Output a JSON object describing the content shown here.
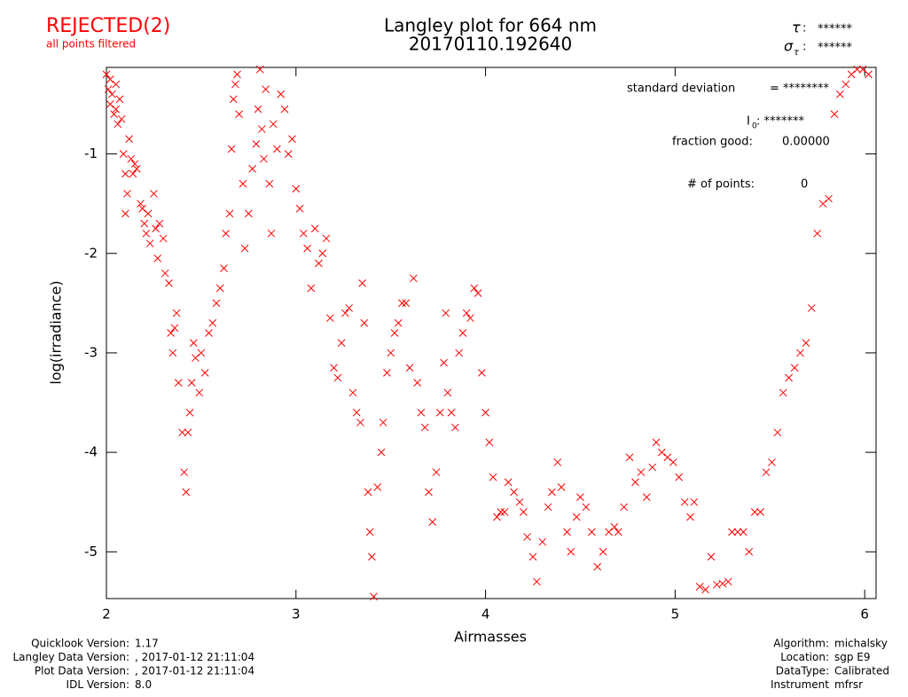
{
  "chart_data": {
    "type": "scatter",
    "title": "Langley plot for 664 nm",
    "subtitle": "20170110.192640",
    "status": "REJECTED(2)",
    "status_note": "all points filtered",
    "tau": {
      "symbol": "τ",
      "value": "******"
    },
    "sigma_tau": {
      "symbol": "σ",
      "sub": "τ",
      "value": "******"
    },
    "annotations": {
      "std_label": "standard deviation",
      "std_value": "= ********",
      "i0_label": "I",
      "i0_sub": "0",
      "i0_value": ": *******",
      "fraction_label": "fraction good:",
      "fraction_value": "0.00000",
      "points_label": "# of points:",
      "points_value": "0"
    },
    "x_label": "Airmasses",
    "y_label": "log(irradiance)",
    "color": "#ff0000",
    "xlim": [
      2,
      6.06
    ],
    "ylim": [
      -5.47,
      -0.13
    ],
    "xticks": [
      2,
      3,
      4,
      5,
      6
    ],
    "yticks": [
      -1,
      -2,
      -3,
      -4,
      -5
    ],
    "x": [
      2.0,
      2.01,
      2.02,
      2.02,
      2.03,
      2.04,
      2.05,
      2.05,
      2.06,
      2.07,
      2.08,
      2.09,
      2.1,
      2.1,
      2.11,
      2.12,
      2.13,
      2.14,
      2.15,
      2.16,
      2.18,
      2.19,
      2.2,
      2.21,
      2.22,
      2.23,
      2.25,
      2.26,
      2.27,
      2.28,
      2.3,
      2.31,
      2.33,
      2.34,
      2.35,
      2.36,
      2.37,
      2.38,
      2.4,
      2.41,
      2.42,
      2.43,
      2.44,
      2.45,
      2.46,
      2.47,
      2.49,
      2.5,
      2.52,
      2.54,
      2.56,
      2.58,
      2.6,
      2.62,
      2.63,
      2.65,
      2.66,
      2.67,
      2.68,
      2.69,
      2.7,
      2.72,
      2.73,
      2.75,
      2.77,
      2.79,
      2.8,
      2.81,
      2.82,
      2.83,
      2.84,
      2.86,
      2.87,
      2.88,
      2.9,
      2.92,
      2.94,
      2.96,
      2.98,
      3.0,
      3.02,
      3.04,
      3.06,
      3.08,
      3.1,
      3.12,
      3.14,
      3.16,
      3.18,
      3.2,
      3.22,
      3.24,
      3.26,
      3.28,
      3.3,
      3.32,
      3.34,
      3.35,
      3.36,
      3.38,
      3.39,
      3.4,
      3.41,
      3.43,
      3.45,
      3.46,
      3.48,
      3.5,
      3.52,
      3.54,
      3.56,
      3.58,
      3.6,
      3.62,
      3.64,
      3.66,
      3.68,
      3.7,
      3.72,
      3.74,
      3.76,
      3.78,
      3.79,
      3.8,
      3.82,
      3.84,
      3.86,
      3.88,
      3.9,
      3.92,
      3.94,
      3.96,
      3.98,
      4.0,
      4.02,
      4.04,
      4.06,
      4.08,
      4.1,
      4.12,
      4.15,
      4.18,
      4.2,
      4.22,
      4.25,
      4.27,
      4.3,
      4.33,
      4.35,
      4.38,
      4.4,
      4.43,
      4.45,
      4.48,
      4.5,
      4.53,
      4.56,
      4.59,
      4.62,
      4.65,
      4.68,
      4.7,
      4.73,
      4.76,
      4.79,
      4.82,
      4.85,
      4.88,
      4.9,
      4.93,
      4.96,
      4.99,
      5.02,
      5.05,
      5.08,
      5.1,
      5.13,
      5.16,
      5.19,
      5.22,
      5.25,
      5.28,
      5.3,
      5.33,
      5.36,
      5.39,
      5.42,
      5.45,
      5.48,
      5.51,
      5.54,
      5.57,
      5.6,
      5.63,
      5.66,
      5.69,
      5.72,
      5.75,
      5.78,
      5.81,
      5.84,
      5.87,
      5.9,
      5.93,
      5.96,
      5.99,
      6.02
    ],
    "values": [
      -0.2,
      -0.35,
      -0.5,
      -0.25,
      -0.4,
      -0.6,
      -0.3,
      -0.55,
      -0.7,
      -0.45,
      -0.65,
      -1.0,
      -1.2,
      -1.6,
      -1.4,
      -0.85,
      -1.05,
      -1.2,
      -1.1,
      -1.15,
      -1.5,
      -1.55,
      -1.7,
      -1.8,
      -1.6,
      -1.9,
      -1.4,
      -1.75,
      -2.05,
      -1.7,
      -1.85,
      -2.2,
      -2.3,
      -2.8,
      -3.0,
      -2.75,
      -2.6,
      -3.3,
      -3.8,
      -4.2,
      -4.4,
      -3.8,
      -3.6,
      -3.3,
      -2.9,
      -3.05,
      -3.4,
      -3.0,
      -3.2,
      -2.8,
      -2.7,
      -2.5,
      -2.35,
      -2.15,
      -1.8,
      -1.6,
      -0.95,
      -0.45,
      -0.3,
      -0.2,
      -0.6,
      -1.3,
      -1.95,
      -1.6,
      -1.15,
      -0.9,
      -0.55,
      -0.15,
      -0.75,
      -1.05,
      -0.35,
      -1.3,
      -1.8,
      -0.7,
      -0.95,
      -0.4,
      -0.55,
      -1.0,
      -0.85,
      -1.35,
      -1.55,
      -1.8,
      -1.95,
      -2.35,
      -1.75,
      -2.1,
      -2.0,
      -1.85,
      -2.65,
      -3.15,
      -3.25,
      -2.9,
      -2.6,
      -2.55,
      -3.4,
      -3.6,
      -3.7,
      -2.3,
      -2.7,
      -4.4,
      -4.8,
      -5.05,
      -5.45,
      -4.35,
      -4.0,
      -3.7,
      -3.2,
      -3.0,
      -2.8,
      -2.7,
      -2.5,
      -2.5,
      -3.15,
      -2.25,
      -3.3,
      -3.6,
      -3.75,
      -4.4,
      -4.7,
      -4.2,
      -3.6,
      -3.1,
      -2.6,
      -3.4,
      -3.6,
      -3.75,
      -3.0,
      -2.8,
      -2.6,
      -2.65,
      -2.35,
      -2.4,
      -3.2,
      -3.6,
      -3.9,
      -4.25,
      -4.65,
      -4.6,
      -4.6,
      -4.3,
      -4.4,
      -4.5,
      -4.6,
      -4.85,
      -5.05,
      -5.3,
      -4.9,
      -4.55,
      -4.4,
      -4.1,
      -4.35,
      -4.8,
      -5.0,
      -4.65,
      -4.45,
      -4.55,
      -4.8,
      -5.15,
      -5.0,
      -4.8,
      -4.75,
      -4.8,
      -4.55,
      -4.05,
      -4.3,
      -4.2,
      -4.45,
      -4.15,
      -3.9,
      -4.0,
      -4.05,
      -4.1,
      -4.25,
      -4.5,
      -4.65,
      -4.5,
      -5.35,
      -5.38,
      -5.05,
      -5.33,
      -5.32,
      -5.3,
      -4.8,
      -4.8,
      -4.8,
      -5.0,
      -4.6,
      -4.6,
      -4.2,
      -4.1,
      -3.8,
      -3.4,
      -3.25,
      -3.15,
      -3.0,
      -2.9,
      -2.55,
      -1.8,
      -1.5,
      -1.45,
      -0.6,
      -0.4,
      -0.3,
      -0.2,
      -0.15,
      -0.15,
      -0.2
    ],
    "footer_left": [
      [
        "Quicklook Version:",
        "1.17"
      ],
      [
        "Langley Data Version:",
        ", 2017-01-12 21:11:04"
      ],
      [
        "Plot Data Version:",
        ", 2017-01-12 21:11:04"
      ],
      [
        "IDL Version:",
        "8.0"
      ]
    ],
    "footer_right": [
      [
        "Algorithm:",
        "michalsky"
      ],
      [
        "Location:",
        "sgp E9"
      ],
      [
        "DataType:",
        "Calibrated"
      ],
      [
        "Instrument",
        "mfrsr"
      ]
    ]
  }
}
